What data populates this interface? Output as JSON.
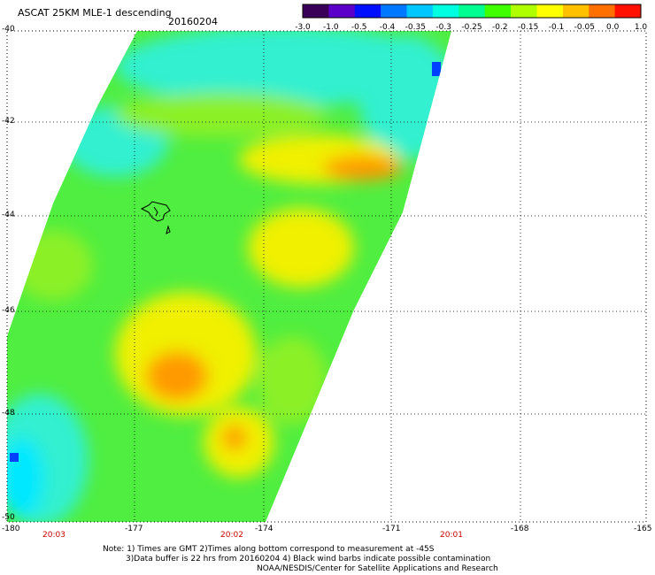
{
  "header": {
    "title": "ASCAT 25KM MLE-1 descending",
    "date": "20160204"
  },
  "colorbar": {
    "labels": [
      "-3.0",
      "-1.0",
      "-0.5",
      "-0.4",
      "-0.35",
      "-0.3",
      "-0.25",
      "-0.2",
      "-0.15",
      "-0.1",
      "-0.05",
      "0.0",
      "1.0"
    ],
    "colors": [
      "#3a0058",
      "#5a00c8",
      "#0010ff",
      "#0078ff",
      "#00c8ff",
      "#00ffe0",
      "#00ff90",
      "#40ff00",
      "#b0ff00",
      "#ffff00",
      "#ffc000",
      "#ff7000",
      "#ff1000"
    ]
  },
  "map": {
    "latitude_labels": [
      "-40",
      "-42",
      "-44",
      "-46",
      "-48",
      "-50"
    ],
    "longitude_labels": [
      "-180",
      "-177",
      "-174",
      "-171",
      "-168",
      "-165"
    ],
    "time_labels": [
      "20:03",
      "20:02",
      "20:01"
    ],
    "colors": {
      "green": "#50ee40",
      "lightgreen": "#8cf028",
      "cyan": "#30f0d0",
      "aqua": "#00e8ff",
      "yellow": "#f0f000",
      "orange": "#ff9a00",
      "blue": "#0040ff",
      "time_label": "#cc0000"
    }
  },
  "footer": {
    "note_line1": "Note: 1) Times are GMT 2)Times along bottom correspond to measurement at -45S",
    "note_line2": "3)Data buffer is 22 hrs from 20160204 4) Black wind barbs indicate possible contamination",
    "credit": "NOAA/NESDIS/Center for Satellite Applications and Research"
  }
}
